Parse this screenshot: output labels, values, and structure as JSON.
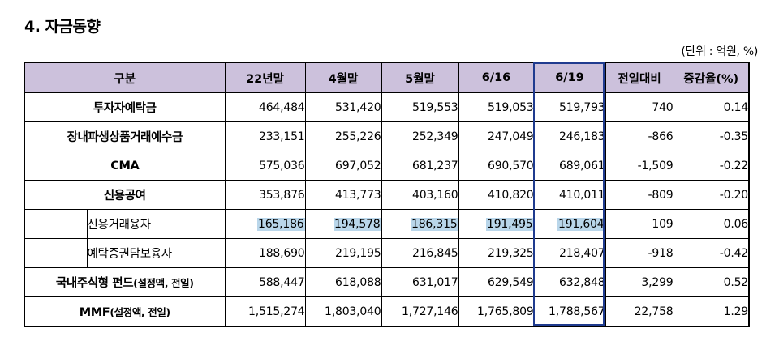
{
  "title": "4. 자금동향",
  "unit": "(단위 : 억원, %)",
  "columns": [
    "구분",
    "22년말",
    "4월말",
    "5월말",
    "6/16",
    "6/19",
    "전일대비",
    "증감율(%)"
  ],
  "rows": [
    {
      "label": "투자자예탁금",
      "values": [
        "464,484",
        "531,420",
        "519,553",
        "519,053",
        "519,793",
        "740",
        "0.14"
      ]
    },
    {
      "label": "장내파생상품거래예수금",
      "values": [
        "233,151",
        "255,226",
        "252,349",
        "247,049",
        "246,183",
        "-866",
        "-0.35"
      ]
    },
    {
      "label": "CMA",
      "values": [
        "575,036",
        "697,052",
        "681,237",
        "690,570",
        "689,061",
        "-1,509",
        "-0.22"
      ]
    },
    {
      "label": "신용공여",
      "values": [
        "353,876",
        "413,773",
        "403,160",
        "410,820",
        "410,011",
        "-809",
        "-0.20"
      ]
    },
    {
      "label": "신용거래융자",
      "values": [
        "165,186",
        "194,578",
        "186,315",
        "191,495",
        "191,604",
        "109",
        "0.06"
      ]
    },
    {
      "label": "예탁증권담보융자",
      "values": [
        "188,690",
        "219,195",
        "216,845",
        "219,325",
        "218,407",
        "-918",
        "-0.42"
      ]
    },
    {
      "label_main": "국내주식형 펀드",
      "label_note": "(설정액, 전일)",
      "values": [
        "588,447",
        "618,088",
        "631,017",
        "629,549",
        "632,848",
        "3,299",
        "0.52"
      ]
    },
    {
      "label_main": "MMF",
      "label_note": "(설정액, 전일)",
      "values": [
        "1,515,274",
        "1,803,040",
        "1,727,146",
        "1,765,809",
        "1,788,567",
        "22,758",
        "1.29"
      ]
    }
  ],
  "colors": {
    "header_bg": "#ccc1dc",
    "highlight": "#b9d6ea",
    "current_col_border": "#1f3b8f"
  }
}
